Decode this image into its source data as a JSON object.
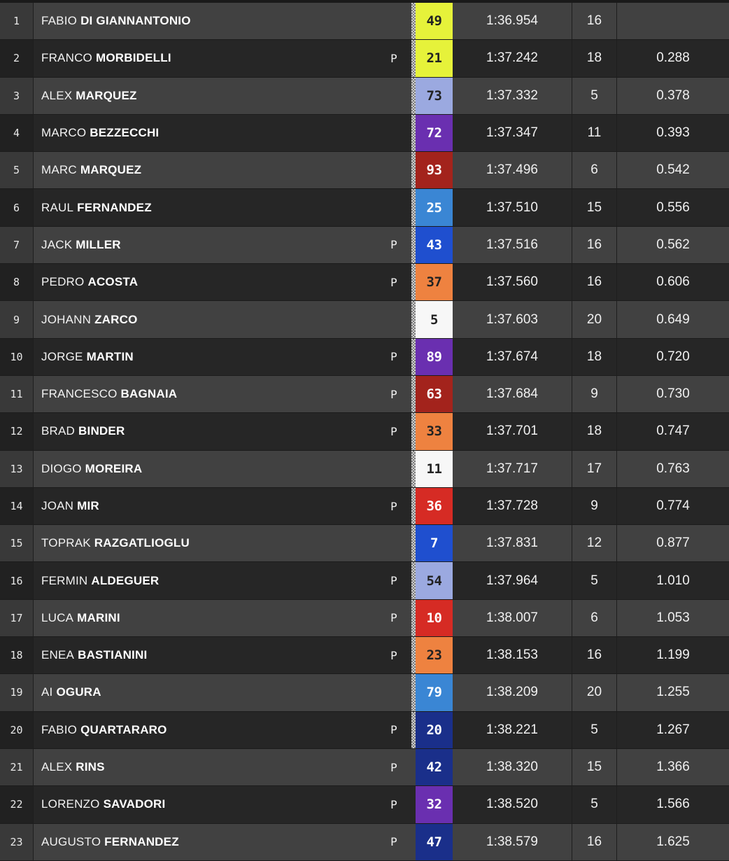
{
  "rows": [
    {
      "pos": "1",
      "first": "FABIO",
      "last": "DI GIANNANTONIO",
      "pit": "",
      "number": "49",
      "bg": "#e6f23a",
      "fg": "#222222",
      "checker": true,
      "time": "1:36.954",
      "laps": "16",
      "gap": ""
    },
    {
      "pos": "2",
      "first": "FRANCO",
      "last": "MORBIDELLI",
      "pit": "P",
      "number": "21",
      "bg": "#e6f23a",
      "fg": "#222222",
      "checker": true,
      "time": "1:37.242",
      "laps": "18",
      "gap": "0.288"
    },
    {
      "pos": "3",
      "first": "ALEX",
      "last": "MARQUEZ",
      "pit": "",
      "number": "73",
      "bg": "#9ba9e0",
      "fg": "#222222",
      "checker": true,
      "time": "1:37.332",
      "laps": "5",
      "gap": "0.378"
    },
    {
      "pos": "4",
      "first": "MARCO",
      "last": "BEZZECCHI",
      "pit": "",
      "number": "72",
      "bg": "#6a2fb0",
      "fg": "#ffffff",
      "checker": true,
      "time": "1:37.347",
      "laps": "11",
      "gap": "0.393"
    },
    {
      "pos": "5",
      "first": "MARC",
      "last": "MARQUEZ",
      "pit": "",
      "number": "93",
      "bg": "#a3231c",
      "fg": "#ffffff",
      "checker": true,
      "time": "1:37.496",
      "laps": "6",
      "gap": "0.542"
    },
    {
      "pos": "6",
      "first": "RAUL",
      "last": "FERNANDEZ",
      "pit": "",
      "number": "25",
      "bg": "#3a86d4",
      "fg": "#ffffff",
      "checker": true,
      "time": "1:37.510",
      "laps": "15",
      "gap": "0.556"
    },
    {
      "pos": "7",
      "first": "JACK",
      "last": "MILLER",
      "pit": "P",
      "number": "43",
      "bg": "#1f4fcf",
      "fg": "#ffffff",
      "checker": true,
      "time": "1:37.516",
      "laps": "16",
      "gap": "0.562"
    },
    {
      "pos": "8",
      "first": "PEDRO",
      "last": "ACOSTA",
      "pit": "P",
      "number": "37",
      "bg": "#ee8240",
      "fg": "#222222",
      "checker": true,
      "time": "1:37.560",
      "laps": "16",
      "gap": "0.606"
    },
    {
      "pos": "9",
      "first": "JOHANN",
      "last": "ZARCO",
      "pit": "",
      "number": "5",
      "bg": "#f7f7f7",
      "fg": "#222222",
      "checker": true,
      "time": "1:37.603",
      "laps": "20",
      "gap": "0.649"
    },
    {
      "pos": "10",
      "first": "JORGE",
      "last": "MARTIN",
      "pit": "P",
      "number": "89",
      "bg": "#6a2fb0",
      "fg": "#ffffff",
      "checker": true,
      "time": "1:37.674",
      "laps": "18",
      "gap": "0.720"
    },
    {
      "pos": "11",
      "first": "FRANCESCO",
      "last": "BAGNAIA",
      "pit": "P",
      "number": "63",
      "bg": "#a3231c",
      "fg": "#ffffff",
      "checker": true,
      "time": "1:37.684",
      "laps": "9",
      "gap": "0.730"
    },
    {
      "pos": "12",
      "first": "BRAD",
      "last": "BINDER",
      "pit": "P",
      "number": "33",
      "bg": "#ee8240",
      "fg": "#222222",
      "checker": true,
      "time": "1:37.701",
      "laps": "18",
      "gap": "0.747"
    },
    {
      "pos": "13",
      "first": "DIOGO",
      "last": "MOREIRA",
      "pit": "",
      "number": "11",
      "bg": "#f7f7f7",
      "fg": "#222222",
      "checker": true,
      "time": "1:37.717",
      "laps": "17",
      "gap": "0.763"
    },
    {
      "pos": "14",
      "first": "JOAN",
      "last": "MIR",
      "pit": "P",
      "number": "36",
      "bg": "#d62b24",
      "fg": "#ffffff",
      "checker": true,
      "time": "1:37.728",
      "laps": "9",
      "gap": "0.774"
    },
    {
      "pos": "15",
      "first": "TOPRAK",
      "last": "RAZGATLIOGLU",
      "pit": "",
      "number": "7",
      "bg": "#1f4fcf",
      "fg": "#ffffff",
      "checker": true,
      "time": "1:37.831",
      "laps": "12",
      "gap": "0.877"
    },
    {
      "pos": "16",
      "first": "FERMIN",
      "last": "ALDEGUER",
      "pit": "P",
      "number": "54",
      "bg": "#9ba9e0",
      "fg": "#222222",
      "checker": true,
      "time": "1:37.964",
      "laps": "5",
      "gap": "1.010"
    },
    {
      "pos": "17",
      "first": "LUCA",
      "last": "MARINI",
      "pit": "P",
      "number": "10",
      "bg": "#d62b24",
      "fg": "#ffffff",
      "checker": true,
      "time": "1:38.007",
      "laps": "6",
      "gap": "1.053"
    },
    {
      "pos": "18",
      "first": "ENEA",
      "last": "BASTIANINI",
      "pit": "P",
      "number": "23",
      "bg": "#ee8240",
      "fg": "#222222",
      "checker": true,
      "time": "1:38.153",
      "laps": "16",
      "gap": "1.199"
    },
    {
      "pos": "19",
      "first": "AI",
      "last": "OGURA",
      "pit": "",
      "number": "79",
      "bg": "#3a86d4",
      "fg": "#ffffff",
      "checker": true,
      "time": "1:38.209",
      "laps": "20",
      "gap": "1.255"
    },
    {
      "pos": "20",
      "first": "FABIO",
      "last": "QUARTARARO",
      "pit": "P",
      "number": "20",
      "bg": "#1a2f8a",
      "fg": "#ffffff",
      "checker": true,
      "time": "1:38.221",
      "laps": "5",
      "gap": "1.267"
    },
    {
      "pos": "21",
      "first": "ALEX",
      "last": "RINS",
      "pit": "P",
      "number": "42",
      "bg": "#1a2f8a",
      "fg": "#ffffff",
      "checker": false,
      "time": "1:38.320",
      "laps": "15",
      "gap": "1.366"
    },
    {
      "pos": "22",
      "first": "LORENZO",
      "last": "SAVADORI",
      "pit": "P",
      "number": "32",
      "bg": "#6a2fb0",
      "fg": "#ffffff",
      "checker": false,
      "time": "1:38.520",
      "laps": "5",
      "gap": "1.566"
    },
    {
      "pos": "23",
      "first": "AUGUSTO",
      "last": "FERNANDEZ",
      "pit": "P",
      "number": "47",
      "bg": "#1a2f8a",
      "fg": "#ffffff",
      "checker": false,
      "time": "1:38.579",
      "laps": "16",
      "gap": "1.625"
    }
  ]
}
